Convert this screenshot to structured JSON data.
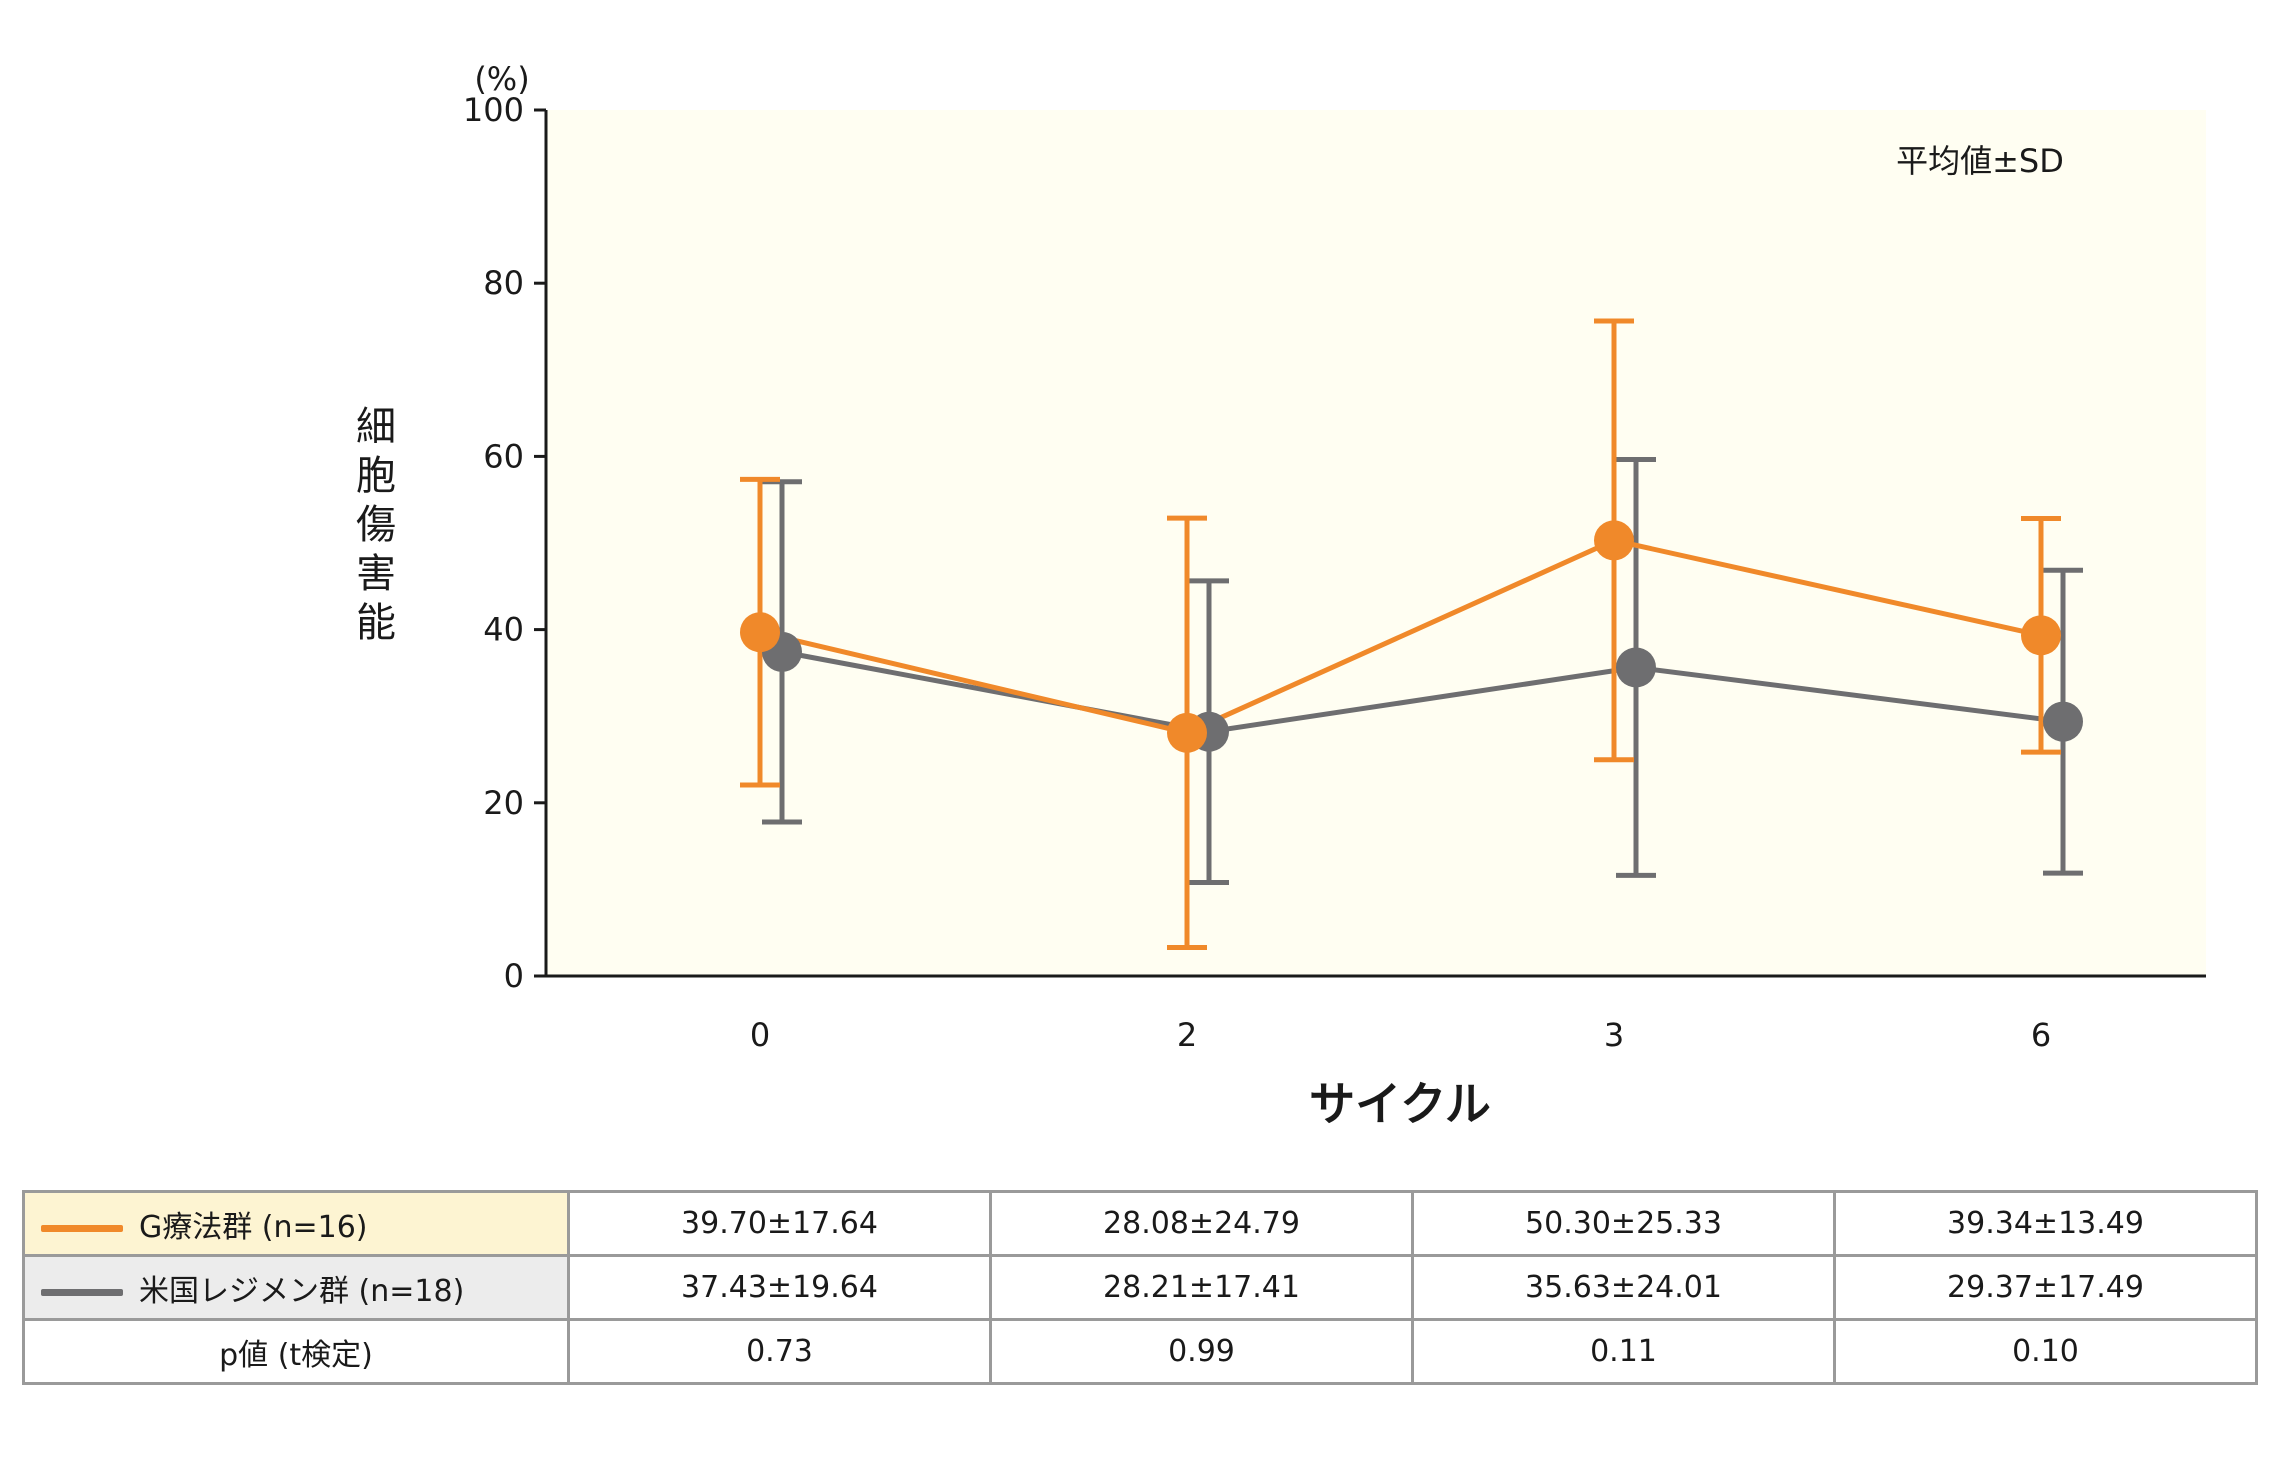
{
  "chart_data": {
    "type": "line",
    "x_categories": [
      "0",
      "2",
      "3",
      "6"
    ],
    "xlabel": "サイクル",
    "ylabel": "細胞傷害能",
    "y_unit": "(%)",
    "ylim": [
      0,
      100
    ],
    "yticks": [
      0,
      20,
      40,
      60,
      80,
      100
    ],
    "annotation": "平均値±SD",
    "plot_background": "#fffef2",
    "series": [
      {
        "name": "G療法群 (n=16)",
        "color": "#f0892a",
        "mean": [
          39.7,
          28.08,
          50.3,
          39.34
        ],
        "sd": [
          17.64,
          24.79,
          25.33,
          13.49
        ]
      },
      {
        "name": "米国レジメン群 (n=18)",
        "color": "#6e6e70",
        "mean": [
          37.43,
          28.21,
          35.63,
          29.37
        ],
        "sd": [
          19.64,
          17.41,
          24.01,
          17.49
        ]
      }
    ]
  },
  "table": {
    "rows": [
      {
        "label": "G療法群 (n=16)",
        "bg": "#fdf4d2",
        "swatch": "#f0892a",
        "cells": [
          "39.70±17.64",
          "28.08±24.79",
          "50.30±25.33",
          "39.34±13.49"
        ]
      },
      {
        "label": "米国レジメン群 (n=18)",
        "bg": "#ececec",
        "swatch": "#6e6e70",
        "cells": [
          "37.43±19.64",
          "28.21±17.41",
          "35.63±24.01",
          "29.37±17.49"
        ]
      },
      {
        "label": "p値 (t検定)",
        "bg": "#ffffff",
        "swatch": "",
        "cells": [
          "0.73",
          "0.99",
          "0.11",
          "0.10"
        ]
      }
    ]
  }
}
